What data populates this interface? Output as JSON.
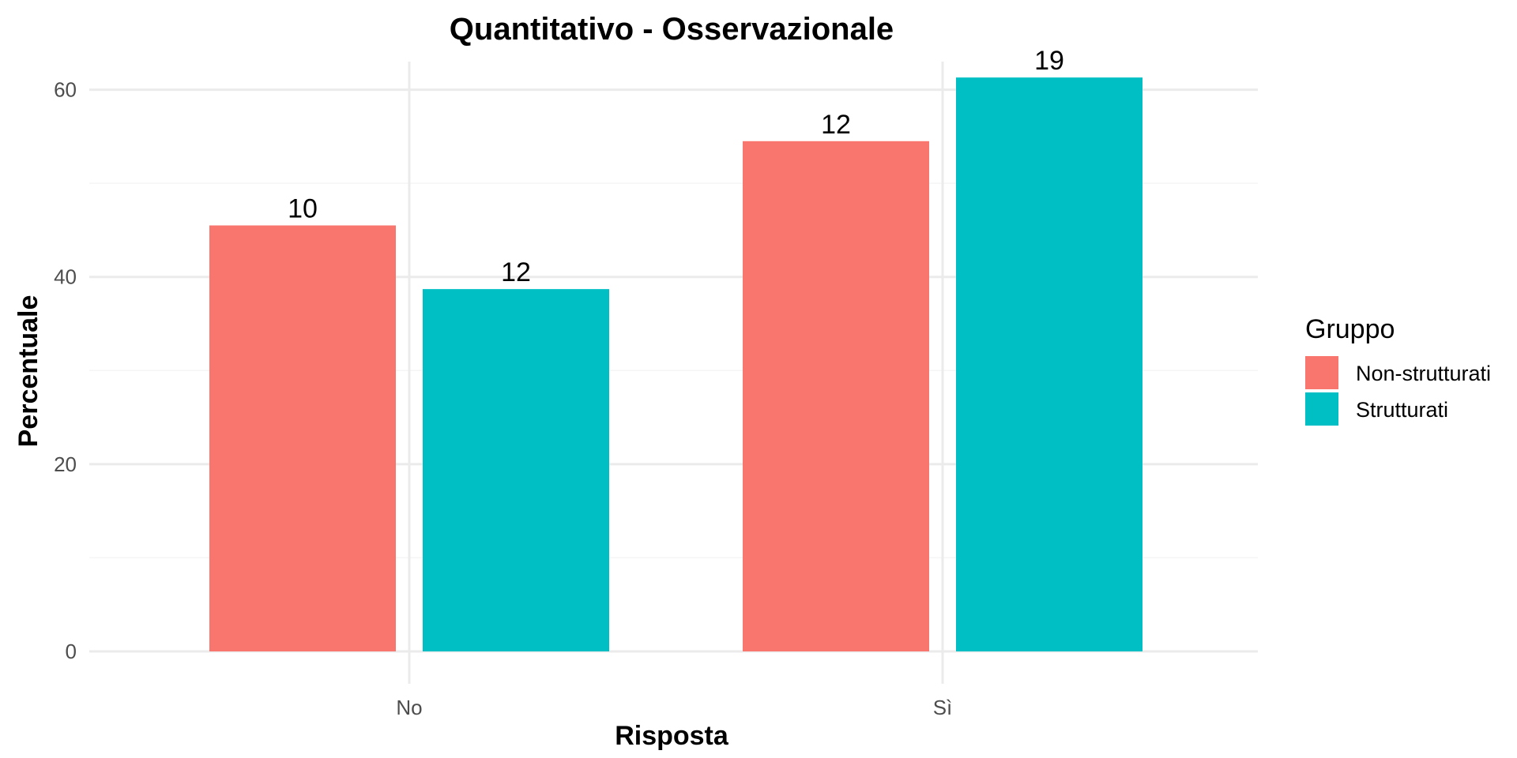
{
  "chart_data": {
    "type": "bar",
    "title": "Quantitativo - Osservazionale",
    "xlabel": "Risposta",
    "ylabel": "Percentuale",
    "categories": [
      "No",
      "Sì"
    ],
    "series": [
      {
        "name": "Non-strutturati",
        "color": "#F8766D",
        "values": [
          45.5,
          54.5
        ],
        "labels": [
          "10",
          "12"
        ]
      },
      {
        "name": "Strutturati",
        "color": "#00BFC4",
        "values": [
          38.7,
          61.3
        ],
        "labels": [
          "12",
          "19"
        ]
      }
    ],
    "ylim": [
      0,
      63
    ],
    "yticks": [
      0,
      20,
      40,
      60
    ],
    "grid": true,
    "legend": {
      "title": "Gruppo",
      "position": "right"
    }
  }
}
